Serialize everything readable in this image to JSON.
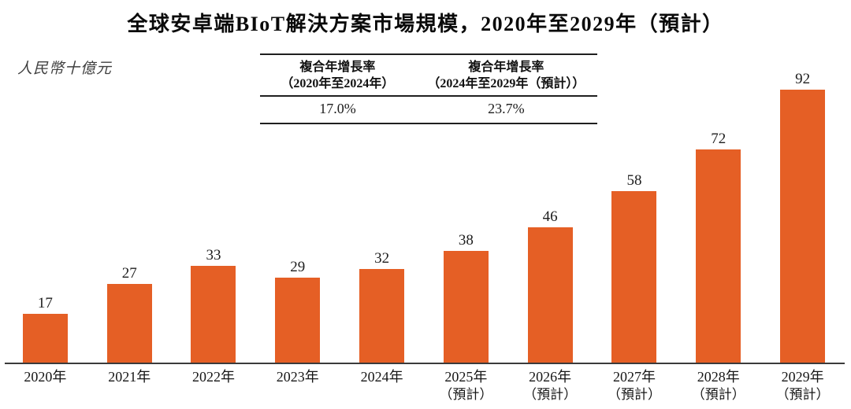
{
  "title": "全球安卓端BIoT解決方案市場規模，2020年至2029年（預計）",
  "unit_label": "人民幣十億元",
  "cagr_table": {
    "columns": [
      {
        "header_line1": "複合年增長率",
        "header_line2": "（2020年至2024年）",
        "value": "17.0%"
      },
      {
        "header_line1": "複合年增長率",
        "header_line2": "（2024年至2029年（預計））",
        "value": "23.7%"
      }
    ]
  },
  "colors": {
    "bar": "#E55F25",
    "axis": "#3B3B3B",
    "rule": "#1F1F1F",
    "text": "#1D1D1D"
  },
  "chart_data": {
    "type": "bar",
    "title": "全球安卓端BIoT解決方案市場規模，2020年至2029年（預計）",
    "ylabel": "人民幣十億元",
    "xlabel": "",
    "categories": [
      "2020年",
      "2021年",
      "2022年",
      "2023年",
      "2024年",
      "2025年（預計）",
      "2026年（預計）",
      "2027年（預計）",
      "2028年（預計）",
      "2029年（預計）"
    ],
    "values": [
      17,
      27,
      33,
      29,
      32,
      38,
      46,
      58,
      72,
      92
    ],
    "bars": [
      {
        "year": "2020年",
        "note": "",
        "value": 17
      },
      {
        "year": "2021年",
        "note": "",
        "value": 27
      },
      {
        "year": "2022年",
        "note": "",
        "value": 33
      },
      {
        "year": "2023年",
        "note": "",
        "value": 29
      },
      {
        "year": "2024年",
        "note": "",
        "value": 32
      },
      {
        "year": "2025年",
        "note": "（預計）",
        "value": 38
      },
      {
        "year": "2026年",
        "note": "（預計）",
        "value": 46
      },
      {
        "year": "2027年",
        "note": "（預計）",
        "value": 58
      },
      {
        "year": "2028年",
        "note": "（預計）",
        "value": 72
      },
      {
        "year": "2029年",
        "note": "（預計）",
        "value": 92
      }
    ],
    "ylim": [
      0,
      100
    ],
    "grid": false,
    "legend": null,
    "value_labels_shown": true,
    "cagr_annotations": [
      {
        "label": "複合年增長率（2020年至2024年）",
        "value": "17.0%"
      },
      {
        "label": "複合年增長率（2024年至2029年（預計））",
        "value": "23.7%"
      }
    ]
  }
}
